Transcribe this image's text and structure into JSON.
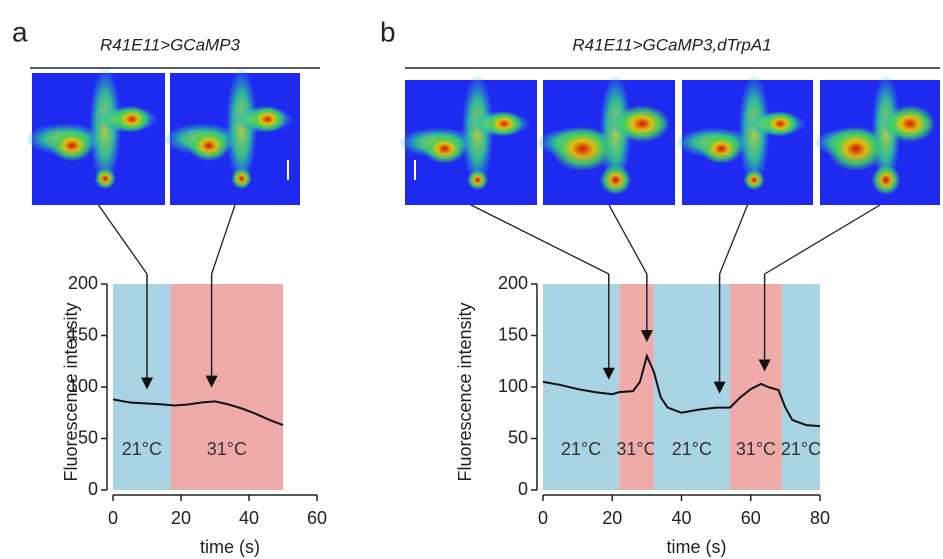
{
  "chart_data": [
    {
      "type": "line",
      "panel": "a",
      "title": "R41E11>GCaMP3",
      "x_label": "time (s)",
      "y_label": "Fluorescence intensity",
      "x": [
        0,
        5,
        10,
        15,
        18,
        22,
        26,
        30,
        34,
        38,
        42,
        46,
        50
      ],
      "values": [
        88,
        85,
        84,
        83,
        82,
        83,
        85,
        86,
        83,
        79,
        74,
        68,
        63
      ],
      "color": "#111111",
      "regions": [
        {
          "start": 0,
          "end": 17,
          "label": "21°C",
          "color": "#a9d4e4"
        },
        {
          "start": 17,
          "end": 50,
          "label": "31°C",
          "color": "#efaaaa"
        }
      ],
      "arrow_x": [
        10,
        29
      ],
      "xlim": [
        0,
        60
      ],
      "xticks": [
        0,
        20,
        40,
        60
      ],
      "ylim": [
        0,
        200
      ],
      "yticks": [
        0,
        50,
        100,
        150,
        200
      ]
    },
    {
      "type": "line",
      "panel": "b",
      "title": "R41E11>GCaMP3,dTrpA1",
      "x_label": "time (s)",
      "y_label": "Fluorescence intensity",
      "x": [
        0,
        5,
        10,
        15,
        20,
        22,
        26,
        28,
        30,
        32,
        34,
        36,
        40,
        45,
        50,
        54,
        57,
        60,
        63,
        65,
        68,
        70,
        72,
        76,
        80
      ],
      "values": [
        105,
        102,
        98,
        95,
        93,
        95,
        96,
        105,
        130,
        115,
        90,
        80,
        75,
        78,
        80,
        80,
        90,
        98,
        103,
        100,
        97,
        80,
        68,
        63,
        62
      ],
      "color": "#111111",
      "regions": [
        {
          "start": 0,
          "end": 22,
          "label": "21°C",
          "color": "#a9d4e4"
        },
        {
          "start": 22,
          "end": 32,
          "label": "31°C",
          "color": "#efaaaa"
        },
        {
          "start": 32,
          "end": 54,
          "label": "21°C",
          "color": "#a9d4e4"
        },
        {
          "start": 54,
          "end": 69,
          "label": "31°C",
          "color": "#efaaaa"
        },
        {
          "start": 69,
          "end": 80,
          "label": "21°C",
          "color": "#a9d4e4"
        }
      ],
      "arrow_x": [
        19,
        30,
        51,
        64
      ],
      "xlim": [
        0,
        80
      ],
      "xticks": [
        0,
        20,
        40,
        60,
        80
      ],
      "ylim": [
        0,
        200
      ],
      "yticks": [
        0,
        50,
        100,
        150,
        200
      ]
    }
  ]
}
